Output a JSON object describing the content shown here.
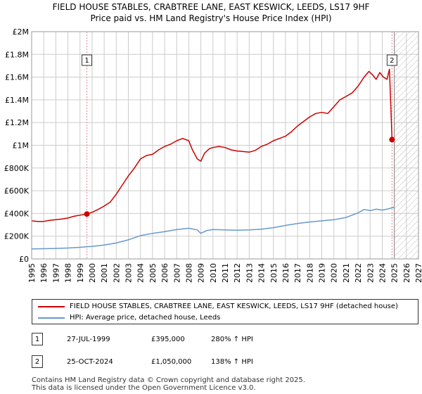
{
  "header": {
    "title_line1": "FIELD HOUSE STABLES, CRABTREE LANE, EAST KESWICK, LEEDS, LS17 9HF",
    "title_line2": "Price paid vs. HM Land Registry's House Price Index (HPI)"
  },
  "colors": {
    "property": "#cc0000",
    "hpi": "#6699cc",
    "grid": "#cccccc",
    "hatch": "#bbbbbb",
    "vline": "#e88888"
  },
  "chart_data": {
    "type": "line",
    "title": "Price paid vs. HM Land Registry's House Price Index (HPI)",
    "xlabel": "",
    "ylabel": "",
    "xlim": [
      1995,
      2027
    ],
    "ylim": [
      0,
      2000000
    ],
    "x_ticks": [
      "1995",
      "1996",
      "1997",
      "1998",
      "1999",
      "2000",
      "2001",
      "2002",
      "2003",
      "2004",
      "2005",
      "2006",
      "2007",
      "2008",
      "2009",
      "2010",
      "2011",
      "2012",
      "2013",
      "2014",
      "2015",
      "2016",
      "2017",
      "2018",
      "2019",
      "2020",
      "2021",
      "2022",
      "2023",
      "2024",
      "2025",
      "2026",
      "2027"
    ],
    "y_ticks": [
      {
        "value": 0,
        "label": "£0"
      },
      {
        "value": 200000,
        "label": "£200K"
      },
      {
        "value": 400000,
        "label": "£400K"
      },
      {
        "value": 600000,
        "label": "£600K"
      },
      {
        "value": 800000,
        "label": "£800K"
      },
      {
        "value": 1000000,
        "label": "£1M"
      },
      {
        "value": 1200000,
        "label": "£1.2M"
      },
      {
        "value": 1400000,
        "label": "£1.4M"
      },
      {
        "value": 1600000,
        "label": "£1.6M"
      },
      {
        "value": 1800000,
        "label": "£1.8M"
      },
      {
        "value": 2000000,
        "label": "£2M"
      }
    ],
    "future_start": 2025.0,
    "series": [
      {
        "name": "FIELD HOUSE STABLES, CRABTREE LANE, EAST KESWICK, LEEDS, LS17 9HF (detached house)",
        "x": [
          1995.0,
          1995.5,
          1996.0,
          1996.5,
          1997.0,
          1997.5,
          1998.0,
          1998.5,
          1999.0,
          1999.57,
          2000.0,
          2000.5,
          2001.0,
          2001.5,
          2002.0,
          2002.5,
          2003.0,
          2003.5,
          2004.0,
          2004.5,
          2005.0,
          2005.5,
          2006.0,
          2006.5,
          2007.0,
          2007.5,
          2008.0,
          2008.3,
          2008.7,
          2009.0,
          2009.3,
          2009.7,
          2010.0,
          2010.5,
          2011.0,
          2011.5,
          2012.0,
          2012.5,
          2013.0,
          2013.5,
          2014.0,
          2014.5,
          2015.0,
          2015.5,
          2016.0,
          2016.5,
          2017.0,
          2017.5,
          2018.0,
          2018.5,
          2019.0,
          2019.5,
          2020.0,
          2020.5,
          2021.0,
          2021.5,
          2022.0,
          2022.5,
          2022.9,
          2023.2,
          2023.5,
          2023.8,
          2024.1,
          2024.4,
          2024.6,
          2024.81,
          2025.0
        ],
        "values": [
          335000,
          330000,
          330000,
          340000,
          345000,
          352000,
          360000,
          375000,
          385000,
          395000,
          410000,
          435000,
          465000,
          500000,
          570000,
          650000,
          730000,
          800000,
          880000,
          910000,
          920000,
          960000,
          990000,
          1010000,
          1040000,
          1060000,
          1040000,
          960000,
          880000,
          860000,
          930000,
          970000,
          980000,
          990000,
          980000,
          960000,
          950000,
          945000,
          940000,
          955000,
          990000,
          1010000,
          1040000,
          1060000,
          1080000,
          1120000,
          1170000,
          1210000,
          1250000,
          1280000,
          1290000,
          1280000,
          1340000,
          1400000,
          1430000,
          1460000,
          1520000,
          1600000,
          1650000,
          1620000,
          1580000,
          1640000,
          1600000,
          1580000,
          1670000,
          1050000,
          1060000
        ]
      },
      {
        "name": "HPI: Average price, detached house, Leeds",
        "x": [
          1995.0,
          1996.0,
          1997.0,
          1998.0,
          1999.0,
          2000.0,
          2001.0,
          2002.0,
          2003.0,
          2004.0,
          2005.0,
          2006.0,
          2007.0,
          2008.0,
          2008.7,
          2009.0,
          2009.5,
          2010.0,
          2011.0,
          2012.0,
          2013.0,
          2014.0,
          2015.0,
          2016.0,
          2017.0,
          2018.0,
          2019.0,
          2020.0,
          2021.0,
          2022.0,
          2022.5,
          2023.0,
          2023.5,
          2024.0,
          2024.5,
          2025.0
        ],
        "values": [
          88000,
          90000,
          92000,
          96000,
          102000,
          110000,
          122000,
          140000,
          168000,
          205000,
          225000,
          240000,
          258000,
          270000,
          255000,
          225000,
          250000,
          258000,
          256000,
          252000,
          255000,
          262000,
          275000,
          295000,
          312000,
          325000,
          335000,
          345000,
          365000,
          405000,
          435000,
          425000,
          438000,
          430000,
          440000,
          455000
        ]
      }
    ],
    "sales": [
      {
        "label": "1",
        "x": 1999.57,
        "value": 395000
      },
      {
        "label": "2",
        "x": 2024.81,
        "value": 1050000
      }
    ]
  },
  "legend": {
    "property_label": "FIELD HOUSE STABLES, CRABTREE LANE, EAST KESWICK, LEEDS, LS17 9HF (detached house)",
    "hpi_label": "HPI: Average price, detached house, Leeds"
  },
  "sales_table": [
    {
      "num": "1",
      "date": "27-JUL-1999",
      "price": "£395,000",
      "hpi": "280% ↑ HPI"
    },
    {
      "num": "2",
      "date": "25-OCT-2024",
      "price": "£1,050,000",
      "hpi": "138% ↑ HPI"
    }
  ],
  "footer": {
    "line1": "Contains HM Land Registry data © Crown copyright and database right 2025.",
    "line2": "This data is licensed under the Open Government Licence v3.0."
  }
}
